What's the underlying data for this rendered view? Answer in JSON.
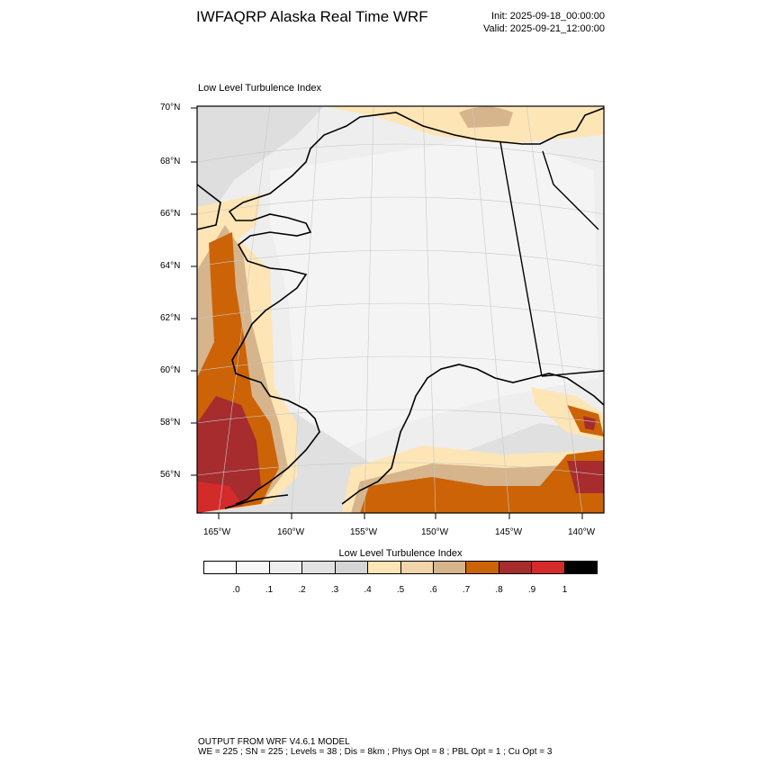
{
  "header": {
    "title": "IWFAQRP Alaska Real Time WRF",
    "init": "Init: 2025-09-18_00:00:00",
    "valid": "Valid: 2025-09-21_12:00:00"
  },
  "plot": {
    "title": "Low Level Turbulence Index",
    "lat_labels": [
      "70°N",
      "68°N",
      "66°N",
      "64°N",
      "62°N",
      "60°N",
      "58°N",
      "56°N"
    ],
    "lon_labels": [
      "165°W",
      "160°W",
      "155°W",
      "150°W",
      "145°W",
      "140°W"
    ]
  },
  "colorbar": {
    "title": "Low Level Turbulence Index",
    "labels": [
      ".0",
      ".1",
      ".2",
      ".3",
      ".4",
      ".5",
      ".6",
      ".7",
      ".8",
      ".9",
      "1"
    ],
    "colors": [
      "#ffffff",
      "#f7f7f7",
      "#eeeeee",
      "#e2e2e2",
      "#d5d5d5",
      "#fde5b6",
      "#f2d5aa",
      "#d6b48c",
      "#cc6306",
      "#a62c2e",
      "#d32a2a",
      "#000000"
    ]
  },
  "footer": {
    "line1": "OUTPUT FROM WRF V4.6.1 MODEL",
    "line2": "WE = 225 ; SN = 225 ; Levels = 38 ; Dis = 8km ; Phys Opt = 8 ; PBL Opt = 1 ; Cu Opt = 3"
  }
}
